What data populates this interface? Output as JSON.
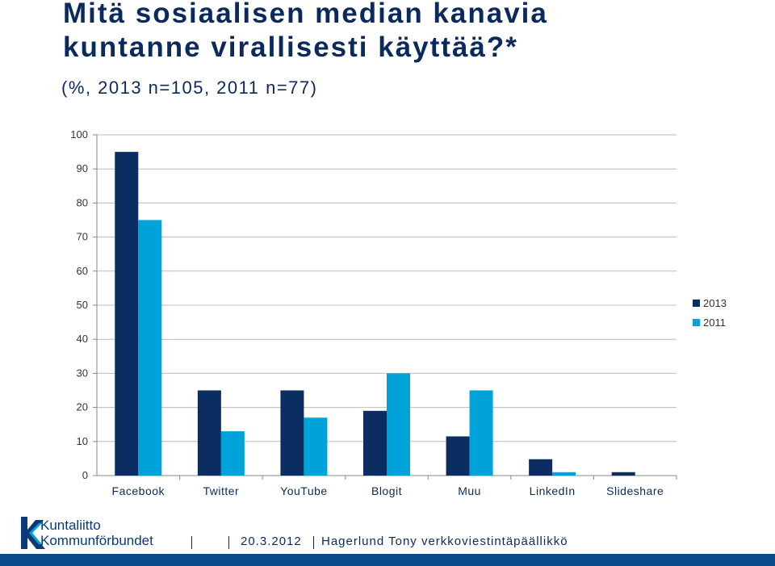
{
  "slide": {
    "title_line1": "Mitä sosiaalisen median kanavia",
    "title_line2": "kuntanne virallisesti käyttää?*",
    "subtitle": "(%, 2013 n=105, 2011 n=77)"
  },
  "chart_data": {
    "type": "bar",
    "categories": [
      "Facebook",
      "Twitter",
      "YouTube",
      "Blogit",
      "Muu",
      "LinkedIn",
      "Slideshare"
    ],
    "series": [
      {
        "name": "2013",
        "values": [
          95,
          25,
          25,
          19,
          11.5,
          4.8,
          1
        ],
        "color": "#0b2d62"
      },
      {
        "name": "2011",
        "values": [
          75,
          13,
          17,
          30,
          25,
          1,
          0
        ],
        "color": "#00a3d9"
      }
    ],
    "ylim": [
      0,
      100
    ],
    "yticks": [
      "0",
      "10",
      "20",
      "30",
      "40",
      "50",
      "60",
      "70",
      "80",
      "90",
      "100"
    ],
    "grid": true,
    "legend_position": "right"
  },
  "logo": {
    "line1": "Kuntaliitto",
    "line2": "Kommunförbundet"
  },
  "footer": {
    "date": "20.3.2012",
    "author": "Hagerlund Tony verkkoviestintäpäällikkö"
  },
  "colors": {
    "title": "#0a2a5e",
    "bar_2013": "#0b2d62",
    "bar_2011": "#00a3d9",
    "bottom_bar": "#0a4a8a"
  }
}
